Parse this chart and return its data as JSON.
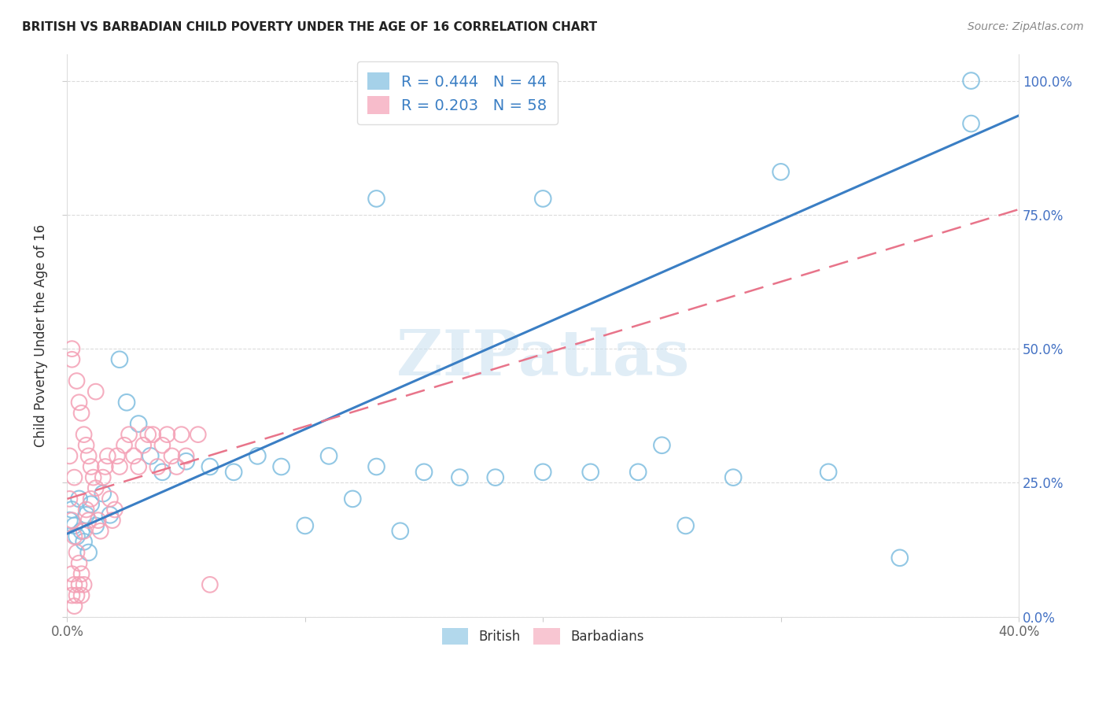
{
  "title": "BRITISH VS BARBADIAN CHILD POVERTY UNDER THE AGE OF 16 CORRELATION CHART",
  "source": "Source: ZipAtlas.com",
  "ylabel": "Child Poverty Under the Age of 16",
  "xlim": [
    0.0,
    0.4
  ],
  "ylim": [
    0.0,
    1.05
  ],
  "xticks": [
    0.0,
    0.1,
    0.2,
    0.3,
    0.4
  ],
  "xticklabels_ends": [
    "0.0%",
    "",
    "",
    "",
    "40.0%"
  ],
  "yticks": [
    0.0,
    0.25,
    0.5,
    0.75,
    1.0
  ],
  "yticklabels": [
    "0.0%",
    "25.0%",
    "50.0%",
    "75.0%",
    "100.0%"
  ],
  "british_R": 0.444,
  "british_N": 44,
  "barbadian_R": 0.203,
  "barbadian_N": 58,
  "british_color": "#7fbee0",
  "barbadian_color": "#f4a0b5",
  "british_line_color": "#3a7ec4",
  "barbadian_line_color": "#e8748a",
  "watermark": "ZIPatlas",
  "brit_line_y0": 0.155,
  "brit_line_y1": 0.935,
  "barb_line_y0": 0.22,
  "barb_line_y1": 0.76,
  "british_x": [
    0.001,
    0.002,
    0.003,
    0.004,
    0.005,
    0.006,
    0.007,
    0.008,
    0.009,
    0.01,
    0.012,
    0.015,
    0.018,
    0.022,
    0.025,
    0.03,
    0.035,
    0.04,
    0.05,
    0.06,
    0.07,
    0.08,
    0.09,
    0.1,
    0.11,
    0.12,
    0.13,
    0.14,
    0.15,
    0.165,
    0.18,
    0.2,
    0.22,
    0.24,
    0.26,
    0.28,
    0.3,
    0.32,
    0.35,
    0.38,
    0.13,
    0.2,
    0.25,
    0.38
  ],
  "british_y": [
    0.18,
    0.2,
    0.17,
    0.15,
    0.22,
    0.16,
    0.14,
    0.19,
    0.12,
    0.21,
    0.17,
    0.23,
    0.19,
    0.48,
    0.4,
    0.36,
    0.3,
    0.27,
    0.29,
    0.28,
    0.27,
    0.3,
    0.28,
    0.17,
    0.3,
    0.22,
    0.28,
    0.16,
    0.27,
    0.26,
    0.26,
    0.27,
    0.27,
    0.27,
    0.17,
    0.26,
    0.83,
    0.27,
    0.11,
    0.92,
    0.78,
    0.78,
    0.32,
    1.0
  ],
  "barbadian_x": [
    0.001,
    0.001,
    0.002,
    0.002,
    0.002,
    0.003,
    0.003,
    0.004,
    0.004,
    0.005,
    0.005,
    0.006,
    0.006,
    0.007,
    0.007,
    0.008,
    0.008,
    0.009,
    0.009,
    0.01,
    0.01,
    0.011,
    0.012,
    0.012,
    0.013,
    0.014,
    0.015,
    0.016,
    0.017,
    0.018,
    0.019,
    0.02,
    0.021,
    0.022,
    0.024,
    0.026,
    0.028,
    0.03,
    0.032,
    0.034,
    0.036,
    0.038,
    0.04,
    0.042,
    0.044,
    0.046,
    0.048,
    0.05,
    0.055,
    0.06,
    0.002,
    0.003,
    0.004,
    0.005,
    0.006,
    0.007,
    0.002,
    0.003
  ],
  "barbadian_y": [
    0.3,
    0.22,
    0.48,
    0.5,
    0.18,
    0.15,
    0.26,
    0.44,
    0.12,
    0.4,
    0.1,
    0.38,
    0.08,
    0.34,
    0.16,
    0.32,
    0.2,
    0.3,
    0.18,
    0.28,
    0.22,
    0.26,
    0.24,
    0.42,
    0.18,
    0.16,
    0.26,
    0.28,
    0.3,
    0.22,
    0.18,
    0.2,
    0.3,
    0.28,
    0.32,
    0.34,
    0.3,
    0.28,
    0.32,
    0.34,
    0.34,
    0.28,
    0.32,
    0.34,
    0.3,
    0.28,
    0.34,
    0.3,
    0.34,
    0.06,
    0.04,
    0.06,
    0.04,
    0.06,
    0.04,
    0.06,
    0.08,
    0.02
  ],
  "legend_british": "British",
  "legend_barbadian": "Barbadians"
}
